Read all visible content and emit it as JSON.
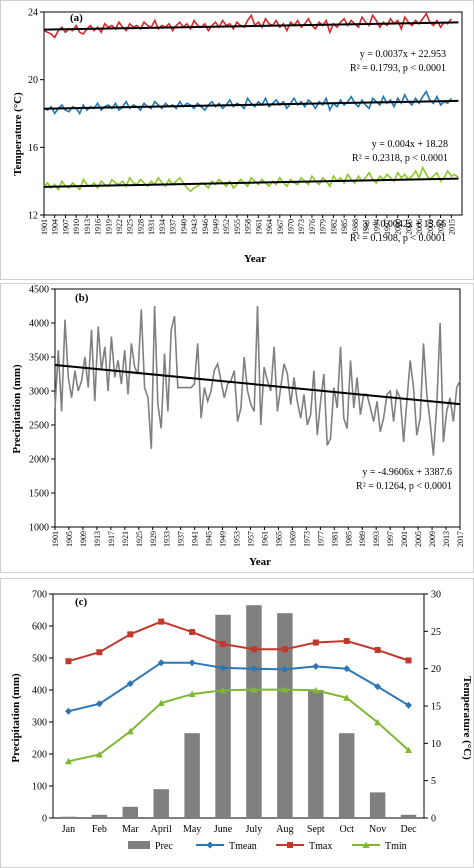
{
  "chart_data": [
    {
      "type": "line",
      "panel": "(a)",
      "xlabel": "Year",
      "ylabel": "Temperature (°C)",
      "xlim": [
        1901,
        2018
      ],
      "ylim": [
        12,
        24
      ],
      "yticks": [
        "12",
        "16",
        "20",
        "24"
      ],
      "xticks": [
        "1901",
        "1904",
        "1907",
        "1910",
        "1913",
        "1916",
        "1919",
        "1922",
        "1925",
        "1928",
        "1931",
        "1934",
        "1937",
        "1940",
        "1943",
        "1946",
        "1949",
        "1952",
        "1955",
        "1958",
        "1961",
        "1964",
        "1967",
        "1970",
        "1973",
        "1976",
        "1979",
        "1982",
        "1985",
        "1988",
        "1991",
        "1994",
        "1997",
        "2000",
        "2003",
        "2006",
        "2009",
        "2012",
        "2015"
      ],
      "series": [
        {
          "color": "#d62728",
          "values": [
            22.9,
            22.8,
            22.7,
            22.5,
            22.9,
            23.1,
            22.8,
            23.0,
            22.9,
            23.2,
            22.8,
            22.7,
            23.0,
            23.2,
            22.9,
            23.1,
            22.8,
            23.3,
            23.1,
            23.2,
            23.0,
            23.4,
            23.1,
            22.9,
            23.3,
            23.1,
            23.2,
            23.0,
            23.4,
            23.2,
            23.1,
            23.5,
            23.0,
            23.2,
            23.1,
            23.3,
            22.9,
            23.2,
            23.4,
            23.1,
            23.3,
            23.0,
            23.5,
            23.2,
            23.1,
            23.3,
            22.9,
            23.2,
            23.4,
            23.1,
            23.5,
            23.2,
            23.3,
            23.0,
            23.4,
            23.2,
            23.1,
            23.5,
            23.8,
            23.2,
            23.4,
            23.1,
            23.6,
            23.3,
            23.2,
            23.5,
            23.1,
            23.3,
            22.9,
            23.4,
            23.2,
            23.5,
            23.1,
            23.3,
            23.6,
            23.2,
            23.0,
            23.4,
            23.2,
            23.5,
            22.8,
            23.3,
            23.1,
            23.4,
            23.6,
            23.2,
            23.5,
            23.3,
            23.1,
            23.7,
            23.4,
            23.2,
            23.8,
            23.5,
            23.1,
            23.4,
            23.2,
            23.6,
            23.3,
            23.5,
            23.0,
            23.7,
            23.4,
            23.2,
            23.5,
            23.3,
            23.6,
            23.9,
            23.4,
            23.2,
            23.5,
            23.1,
            23.4,
            23.3,
            23.6
          ]
        },
        {
          "color": "#1f77b4",
          "values": [
            18.3,
            18.2,
            18.4,
            18.0,
            18.3,
            18.5,
            18.2,
            18.1,
            18.4,
            18.3,
            18.0,
            18.5,
            18.2,
            18.4,
            18.3,
            18.6,
            18.2,
            18.4,
            18.5,
            18.3,
            18.6,
            18.2,
            18.4,
            18.7,
            18.3,
            18.5,
            18.4,
            18.2,
            18.6,
            18.4,
            18.3,
            18.7,
            18.5,
            18.3,
            18.6,
            18.4,
            18.5,
            18.3,
            18.7,
            18.4,
            18.6,
            18.5,
            18.3,
            18.6,
            18.4,
            18.2,
            18.5,
            18.7,
            18.4,
            18.6,
            18.3,
            18.5,
            18.8,
            18.4,
            18.6,
            18.5,
            18.3,
            18.9,
            18.6,
            18.4,
            18.7,
            18.5,
            18.9,
            18.4,
            18.6,
            18.8,
            18.5,
            18.7,
            18.3,
            18.6,
            18.9,
            18.5,
            18.7,
            18.4,
            18.8,
            18.6,
            18.3,
            18.7,
            18.5,
            18.9,
            18.2,
            18.6,
            18.4,
            18.8,
            18.5,
            18.7,
            19.0,
            18.6,
            18.4,
            18.8,
            18.5,
            18.3,
            18.9,
            18.7,
            18.5,
            19.0,
            18.6,
            18.8,
            18.4,
            18.9,
            18.6,
            19.1,
            18.7,
            18.5,
            18.9,
            18.6,
            19.0,
            19.3,
            18.8,
            18.6,
            19.0,
            18.5,
            18.7,
            18.6,
            18.9
          ]
        },
        {
          "color": "#8ac926",
          "values": [
            13.7,
            13.9,
            13.6,
            13.8,
            13.5,
            14.0,
            13.7,
            13.6,
            13.9,
            13.7,
            13.5,
            14.1,
            13.8,
            13.7,
            13.9,
            13.6,
            14.0,
            13.8,
            13.7,
            14.1,
            13.9,
            13.8,
            14.0,
            13.7,
            14.2,
            13.9,
            13.8,
            14.1,
            13.9,
            13.7,
            14.0,
            13.8,
            14.2,
            13.9,
            13.7,
            14.1,
            13.8,
            14.0,
            14.2,
            13.9,
            13.6,
            13.4,
            13.6,
            13.7,
            13.9,
            13.8,
            13.6,
            14.0,
            13.8,
            14.1,
            13.9,
            13.7,
            14.0,
            13.6,
            13.8,
            14.1,
            13.9,
            13.7,
            14.2,
            14.0,
            13.8,
            14.1,
            13.9,
            13.7,
            14.0,
            13.8,
            14.2,
            13.9,
            13.7,
            14.1,
            13.9,
            13.8,
            14.2,
            14.0,
            13.8,
            14.3,
            14.0,
            13.8,
            14.2,
            14.0,
            13.7,
            14.3,
            14.0,
            14.2,
            13.9,
            14.4,
            14.1,
            13.9,
            14.3,
            14.0,
            14.2,
            14.5,
            14.1,
            13.9,
            14.3,
            14.1,
            14.4,
            14.2,
            14.0,
            14.5,
            14.2,
            14.4,
            14.1,
            14.3,
            14.6,
            14.2,
            14.8,
            14.4,
            14.1,
            14.3,
            14.5,
            14.0,
            14.2,
            14.6,
            14.3,
            14.4,
            14.2
          ]
        }
      ],
      "trendlines": [
        {
          "slope": 0.0037,
          "intercept": 22.953,
          "equation": "y = 0.0037x + 22.953",
          "stats": "R² = 0.1793, p < 0.0001"
        },
        {
          "slope": 0.004,
          "intercept": 18.28,
          "equation": "y = 0.004x + 18.28",
          "stats": "R² = 0.2318, p < 0.0001"
        },
        {
          "slope": 0.0042,
          "intercept": 13.66,
          "equation": "y = 0.0042x + 13.66",
          "stats": "R² = 0.1908, p < 0.0001"
        }
      ]
    },
    {
      "type": "line",
      "panel": "(b)",
      "xlabel": "Year",
      "ylabel": "Precipitation (mm)",
      "xlim": [
        1901,
        2017
      ],
      "ylim": [
        1000,
        4500
      ],
      "yticks": [
        "1000",
        "1500",
        "2000",
        "2500",
        "3000",
        "3500",
        "4000",
        "4500"
      ],
      "xticks": [
        "1901",
        "1905",
        "1909",
        "1913",
        "1917",
        "1921",
        "1925",
        "1929",
        "1933",
        "1937",
        "1941",
        "1945",
        "1949",
        "1953",
        "1957",
        "1961",
        "1965",
        "1969",
        "1973",
        "1977",
        "1981",
        "1985",
        "1989",
        "1993",
        "1997",
        "2001",
        "2005",
        "2009",
        "2013",
        "2017"
      ],
      "series": [
        {
          "color": "#808080",
          "values": [
            2750,
            3600,
            2700,
            4050,
            3200,
            2900,
            3300,
            3000,
            3150,
            3500,
            3050,
            3900,
            2850,
            3950,
            3300,
            3650,
            3000,
            3800,
            3200,
            3450,
            3100,
            3600,
            2950,
            3700,
            3350,
            3250,
            4200,
            3050,
            2900,
            2150,
            4250,
            2800,
            2450,
            3550,
            2700,
            3900,
            4100,
            3050,
            3050,
            3050,
            3050,
            3050,
            3100,
            3700,
            2600,
            3050,
            2850,
            3000,
            3300,
            3400,
            3150,
            2900,
            3100,
            3150,
            3300,
            2550,
            2750,
            3500,
            3000,
            2800,
            2700,
            4250,
            2500,
            3350,
            3150,
            3000,
            3650,
            2700,
            3050,
            3400,
            3250,
            2800,
            3200,
            2850,
            2600,
            2950,
            2500,
            2650,
            3300,
            2350,
            2850,
            3250,
            2200,
            2300,
            3050,
            2750,
            3650,
            2600,
            2450,
            3450,
            2750,
            3200,
            2650,
            2950,
            2950,
            2750,
            2550,
            2850,
            2400,
            2600,
            2950,
            3000,
            2550,
            3000,
            2900,
            2250,
            2850,
            3450,
            3050,
            2350,
            2600,
            3700,
            2950,
            2550,
            2050,
            2800,
            4000,
            2250,
            2700,
            2900,
            2550,
            3050,
            3150
          ]
        }
      ],
      "trendlines": [
        {
          "slope": -4.9606,
          "intercept": 3387.6,
          "equation": "y = -4.9606x + 3387.6",
          "stats": "R² = 0.1264,  p < 0.0001"
        }
      ]
    },
    {
      "type": "bar",
      "panel": "(c)",
      "categories": [
        "Jan",
        "Feb",
        "Mar",
        "April",
        "May",
        "June",
        "July",
        "Aug",
        "Sept",
        "Oct",
        "Nov",
        "Dec"
      ],
      "ylabel": "Precipitation (mm)",
      "y2label": "Temperature (°C)",
      "ylim": [
        0,
        700
      ],
      "y2lim": [
        0,
        30
      ],
      "yticks": [
        "0",
        "100",
        "200",
        "300",
        "400",
        "500",
        "600",
        "700"
      ],
      "y2ticks": [
        "0",
        "5",
        "10",
        "15",
        "20",
        "25",
        "30"
      ],
      "bars": {
        "name": "Prec",
        "color": "#7f7f7f",
        "values": [
          4,
          10,
          35,
          90,
          265,
          635,
          665,
          640,
          400,
          265,
          80,
          10
        ]
      },
      "lines": [
        {
          "name": "Tmean",
          "color": "#2e75b6",
          "values": [
            14.3,
            15.3,
            18.0,
            20.8,
            20.8,
            20.1,
            20.0,
            19.9,
            20.3,
            20.0,
            17.6,
            15.1
          ]
        },
        {
          "name": "Tmax",
          "color": "#c0392b",
          "values": [
            21.0,
            22.2,
            24.6,
            26.3,
            24.9,
            23.3,
            22.6,
            22.6,
            23.5,
            23.7,
            22.5,
            21.1
          ]
        },
        {
          "name": "Tmin",
          "color": "#7fb832",
          "values": [
            7.6,
            8.5,
            11.6,
            15.4,
            16.6,
            17.1,
            17.2,
            17.2,
            17.1,
            16.1,
            12.8,
            9.1
          ]
        }
      ],
      "legend": [
        "Prec",
        "Tmean",
        "Tmax",
        "Tmin"
      ],
      "legend_position": "bottom"
    }
  ]
}
